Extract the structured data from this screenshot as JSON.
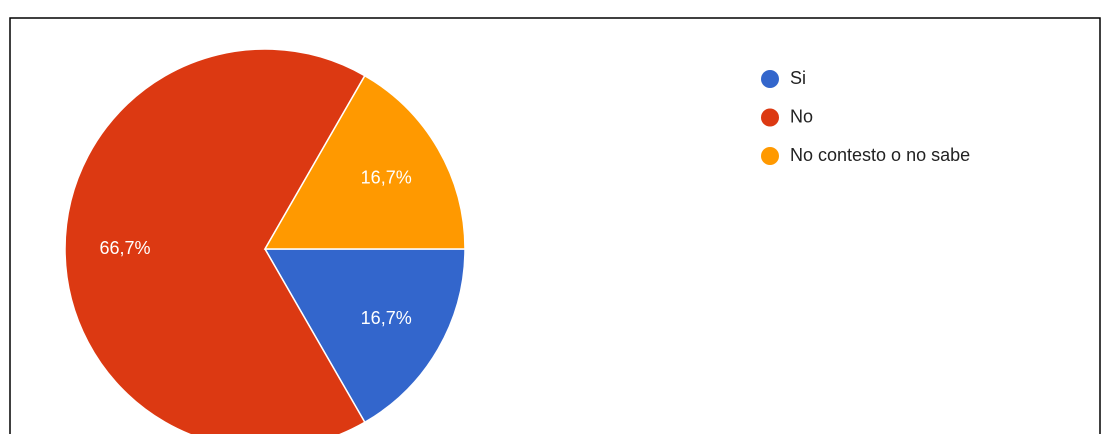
{
  "chart_data": {
    "type": "pie",
    "categories": [
      "Si",
      "No",
      "No contesto o no sabe"
    ],
    "values": [
      16.7,
      66.7,
      16.7
    ],
    "value_labels": [
      "16,7%",
      "66,7%",
      "16,7%"
    ],
    "colors": [
      "#3366cc",
      "#dc3912",
      "#ff9900"
    ],
    "legend": "right"
  }
}
